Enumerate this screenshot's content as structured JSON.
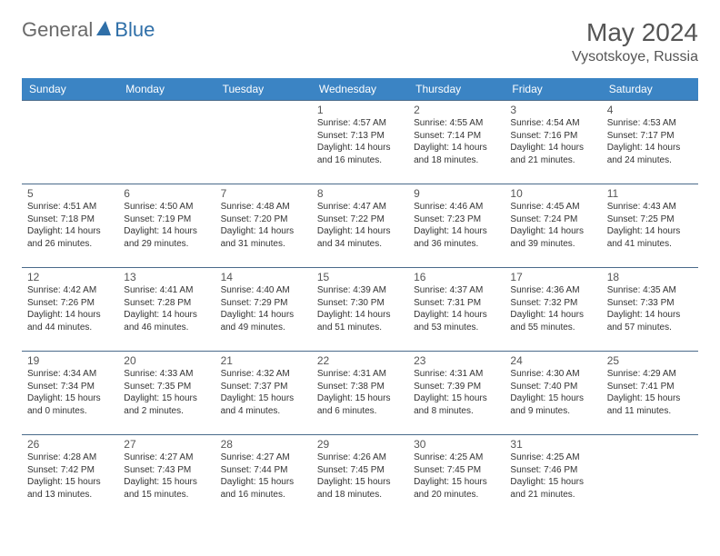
{
  "brand": {
    "name1": "General",
    "name2": "Blue"
  },
  "title": "May 2024",
  "location": "Vysotskoye, Russia",
  "colors": {
    "header_bg": "#3b84c4",
    "header_text": "#ffffff",
    "cell_border": "#4a6a8a",
    "logo_gray": "#6a6a6a",
    "logo_blue": "#2f6fa8",
    "text": "#333333"
  },
  "dayHeaders": [
    "Sunday",
    "Monday",
    "Tuesday",
    "Wednesday",
    "Thursday",
    "Friday",
    "Saturday"
  ],
  "weeks": [
    [
      null,
      null,
      null,
      {
        "d": "1",
        "sr": "4:57 AM",
        "ss": "7:13 PM",
        "dl1": "14 hours",
        "dl2": "and 16 minutes."
      },
      {
        "d": "2",
        "sr": "4:55 AM",
        "ss": "7:14 PM",
        "dl1": "14 hours",
        "dl2": "and 18 minutes."
      },
      {
        "d": "3",
        "sr": "4:54 AM",
        "ss": "7:16 PM",
        "dl1": "14 hours",
        "dl2": "and 21 minutes."
      },
      {
        "d": "4",
        "sr": "4:53 AM",
        "ss": "7:17 PM",
        "dl1": "14 hours",
        "dl2": "and 24 minutes."
      }
    ],
    [
      {
        "d": "5",
        "sr": "4:51 AM",
        "ss": "7:18 PM",
        "dl1": "14 hours",
        "dl2": "and 26 minutes."
      },
      {
        "d": "6",
        "sr": "4:50 AM",
        "ss": "7:19 PM",
        "dl1": "14 hours",
        "dl2": "and 29 minutes."
      },
      {
        "d": "7",
        "sr": "4:48 AM",
        "ss": "7:20 PM",
        "dl1": "14 hours",
        "dl2": "and 31 minutes."
      },
      {
        "d": "8",
        "sr": "4:47 AM",
        "ss": "7:22 PM",
        "dl1": "14 hours",
        "dl2": "and 34 minutes."
      },
      {
        "d": "9",
        "sr": "4:46 AM",
        "ss": "7:23 PM",
        "dl1": "14 hours",
        "dl2": "and 36 minutes."
      },
      {
        "d": "10",
        "sr": "4:45 AM",
        "ss": "7:24 PM",
        "dl1": "14 hours",
        "dl2": "and 39 minutes."
      },
      {
        "d": "11",
        "sr": "4:43 AM",
        "ss": "7:25 PM",
        "dl1": "14 hours",
        "dl2": "and 41 minutes."
      }
    ],
    [
      {
        "d": "12",
        "sr": "4:42 AM",
        "ss": "7:26 PM",
        "dl1": "14 hours",
        "dl2": "and 44 minutes."
      },
      {
        "d": "13",
        "sr": "4:41 AM",
        "ss": "7:28 PM",
        "dl1": "14 hours",
        "dl2": "and 46 minutes."
      },
      {
        "d": "14",
        "sr": "4:40 AM",
        "ss": "7:29 PM",
        "dl1": "14 hours",
        "dl2": "and 49 minutes."
      },
      {
        "d": "15",
        "sr": "4:39 AM",
        "ss": "7:30 PM",
        "dl1": "14 hours",
        "dl2": "and 51 minutes."
      },
      {
        "d": "16",
        "sr": "4:37 AM",
        "ss": "7:31 PM",
        "dl1": "14 hours",
        "dl2": "and 53 minutes."
      },
      {
        "d": "17",
        "sr": "4:36 AM",
        "ss": "7:32 PM",
        "dl1": "14 hours",
        "dl2": "and 55 minutes."
      },
      {
        "d": "18",
        "sr": "4:35 AM",
        "ss": "7:33 PM",
        "dl1": "14 hours",
        "dl2": "and 57 minutes."
      }
    ],
    [
      {
        "d": "19",
        "sr": "4:34 AM",
        "ss": "7:34 PM",
        "dl1": "15 hours",
        "dl2": "and 0 minutes."
      },
      {
        "d": "20",
        "sr": "4:33 AM",
        "ss": "7:35 PM",
        "dl1": "15 hours",
        "dl2": "and 2 minutes."
      },
      {
        "d": "21",
        "sr": "4:32 AM",
        "ss": "7:37 PM",
        "dl1": "15 hours",
        "dl2": "and 4 minutes."
      },
      {
        "d": "22",
        "sr": "4:31 AM",
        "ss": "7:38 PM",
        "dl1": "15 hours",
        "dl2": "and 6 minutes."
      },
      {
        "d": "23",
        "sr": "4:31 AM",
        "ss": "7:39 PM",
        "dl1": "15 hours",
        "dl2": "and 8 minutes."
      },
      {
        "d": "24",
        "sr": "4:30 AM",
        "ss": "7:40 PM",
        "dl1": "15 hours",
        "dl2": "and 9 minutes."
      },
      {
        "d": "25",
        "sr": "4:29 AM",
        "ss": "7:41 PM",
        "dl1": "15 hours",
        "dl2": "and 11 minutes."
      }
    ],
    [
      {
        "d": "26",
        "sr": "4:28 AM",
        "ss": "7:42 PM",
        "dl1": "15 hours",
        "dl2": "and 13 minutes."
      },
      {
        "d": "27",
        "sr": "4:27 AM",
        "ss": "7:43 PM",
        "dl1": "15 hours",
        "dl2": "and 15 minutes."
      },
      {
        "d": "28",
        "sr": "4:27 AM",
        "ss": "7:44 PM",
        "dl1": "15 hours",
        "dl2": "and 16 minutes."
      },
      {
        "d": "29",
        "sr": "4:26 AM",
        "ss": "7:45 PM",
        "dl1": "15 hours",
        "dl2": "and 18 minutes."
      },
      {
        "d": "30",
        "sr": "4:25 AM",
        "ss": "7:45 PM",
        "dl1": "15 hours",
        "dl2": "and 20 minutes."
      },
      {
        "d": "31",
        "sr": "4:25 AM",
        "ss": "7:46 PM",
        "dl1": "15 hours",
        "dl2": "and 21 minutes."
      },
      null
    ]
  ],
  "labels": {
    "sunrise": "Sunrise: ",
    "sunset": "Sunset: ",
    "daylight": "Daylight: "
  }
}
